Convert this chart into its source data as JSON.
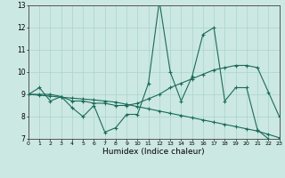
{
  "xlabel": "Humidex (Indice chaleur)",
  "bg_color": "#cce8e2",
  "grid_color": "#a8d4cc",
  "line_color": "#1a6b5a",
  "xlim": [
    0,
    23
  ],
  "ylim": [
    7,
    13
  ],
  "xticks": [
    0,
    1,
    2,
    3,
    4,
    5,
    6,
    7,
    8,
    9,
    10,
    11,
    12,
    13,
    14,
    15,
    16,
    17,
    18,
    19,
    20,
    21,
    22,
    23
  ],
  "yticks": [
    7,
    8,
    9,
    10,
    11,
    12,
    13
  ],
  "line1_x": [
    0,
    1,
    2,
    3,
    4,
    5,
    6,
    7,
    8,
    9,
    10,
    11,
    12,
    13,
    14,
    15,
    16,
    17,
    18,
    19,
    20,
    21,
    22,
    23
  ],
  "line1_y": [
    9.0,
    9.3,
    8.7,
    8.9,
    8.4,
    8.0,
    8.5,
    7.3,
    7.5,
    8.1,
    8.1,
    9.5,
    13.2,
    10.0,
    8.7,
    9.8,
    11.7,
    12.0,
    8.7,
    9.3,
    9.3,
    7.4,
    7.0,
    6.8
  ],
  "line2_x": [
    0,
    1,
    2,
    3,
    4,
    5,
    6,
    7,
    8,
    9,
    10,
    11,
    12,
    13,
    14,
    15,
    16,
    17,
    18,
    19,
    20,
    21,
    22,
    23
  ],
  "line2_y": [
    9.0,
    9.0,
    9.0,
    8.9,
    8.7,
    8.7,
    8.6,
    8.6,
    8.5,
    8.5,
    8.6,
    8.8,
    9.0,
    9.3,
    9.5,
    9.7,
    9.9,
    10.1,
    10.2,
    10.3,
    10.3,
    10.2,
    9.1,
    8.0
  ],
  "line3_x": [
    0,
    1,
    2,
    3,
    4,
    5,
    6,
    7,
    8,
    9,
    10,
    11,
    12,
    13,
    14,
    15,
    16,
    17,
    18,
    19,
    20,
    21,
    22,
    23
  ],
  "line3_y": [
    9.0,
    8.96,
    8.92,
    8.87,
    8.83,
    8.79,
    8.75,
    8.7,
    8.65,
    8.55,
    8.45,
    8.35,
    8.25,
    8.15,
    8.05,
    7.95,
    7.85,
    7.75,
    7.65,
    7.55,
    7.45,
    7.35,
    7.2,
    7.05
  ]
}
